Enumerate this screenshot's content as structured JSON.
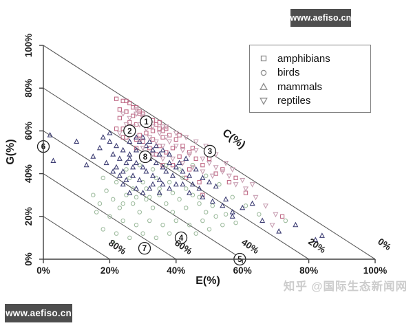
{
  "watermarks": {
    "top_right": "www.aefiso.cn",
    "bottom_left": "www.aefiso.cn",
    "bottom_right": "知乎 @国际生态新闻网"
  },
  "legend": {
    "items": [
      {
        "marker": "square",
        "label": "amphibians"
      },
      {
        "marker": "circle",
        "label": "birds"
      },
      {
        "marker": "triangle-up",
        "label": "mammals"
      },
      {
        "marker": "triangle-down",
        "label": "reptiles"
      }
    ]
  },
  "axes": {
    "x_label": "E(%)",
    "y_label": "G(%)",
    "diag_label": "C(%)",
    "x_ticks": [
      "0%",
      "20%",
      "40%",
      "60%",
      "80%",
      "100%"
    ],
    "y_ticks": [
      "0%",
      "20%",
      "40%",
      "60%",
      "80%",
      "100%"
    ]
  },
  "chart_data": {
    "type": "scatter",
    "title": "",
    "xlabel": "E(%)",
    "ylabel": "G(%)",
    "third_axis_label": "C(%)",
    "xlim": [
      0,
      100
    ],
    "ylim": [
      0,
      100
    ],
    "grid": false,
    "legend_position": "top-right",
    "note": "Ternary-style plot: E + G + C = 100. Diagonal isolines mark constant C values.",
    "c_lines": [
      {
        "intercept": 20,
        "label": "80%"
      },
      {
        "intercept": 40,
        "label": "60%"
      },
      {
        "intercept": 60,
        "label": "40%"
      },
      {
        "intercept": 80,
        "label": "20%"
      },
      {
        "intercept": 100,
        "label": "0%"
      }
    ],
    "annotations": [
      {
        "label": "1",
        "E": 31,
        "G": 64.3
      },
      {
        "label": "2",
        "E": 26,
        "G": 60
      },
      {
        "label": "8",
        "E": 30.7,
        "G": 47.9
      },
      {
        "label": "3",
        "E": 50.2,
        "G": 50.5
      },
      {
        "label": "6",
        "E": 0,
        "G": 52.7
      },
      {
        "label": "7",
        "E": 30.5,
        "G": 5.1
      },
      {
        "label": "4",
        "E": 41.5,
        "G": 10
      },
      {
        "label": "5",
        "E": 59.2,
        "G": 0
      }
    ],
    "series": [
      {
        "name": "amphibians",
        "marker": "square",
        "color": "#bf6a86",
        "points": [
          [
            24,
            74
          ],
          [
            26,
            73
          ],
          [
            28,
            71
          ],
          [
            25,
            69
          ],
          [
            27,
            67
          ],
          [
            29,
            69
          ],
          [
            31,
            66
          ],
          [
            23,
            66
          ],
          [
            26,
            64
          ],
          [
            28,
            63
          ],
          [
            30,
            64
          ],
          [
            32,
            62
          ],
          [
            24,
            61
          ],
          [
            27,
            60
          ],
          [
            29,
            58
          ],
          [
            31,
            59
          ],
          [
            33,
            60
          ],
          [
            35,
            61
          ],
          [
            25,
            57
          ],
          [
            28,
            56
          ],
          [
            30,
            55
          ],
          [
            33,
            56
          ],
          [
            36,
            57
          ],
          [
            38,
            58
          ],
          [
            34,
            63
          ],
          [
            36,
            60
          ],
          [
            27,
            71
          ],
          [
            29,
            68
          ],
          [
            31,
            64
          ],
          [
            33,
            65
          ],
          [
            35,
            64
          ],
          [
            37,
            61
          ],
          [
            40,
            56
          ],
          [
            42,
            53
          ],
          [
            44,
            50
          ],
          [
            46,
            47
          ],
          [
            39,
            52
          ],
          [
            41,
            48
          ],
          [
            35,
            53
          ],
          [
            37,
            50
          ],
          [
            32,
            52
          ],
          [
            34,
            49
          ],
          [
            44,
            42
          ],
          [
            48,
            44
          ],
          [
            52,
            40
          ],
          [
            56,
            36
          ],
          [
            61,
            31
          ],
          [
            47,
            36
          ],
          [
            43,
            38
          ],
          [
            39,
            44
          ],
          [
            72,
            20
          ],
          [
            28,
            52
          ],
          [
            24,
            57
          ],
          [
            22,
            61
          ],
          [
            23,
            70
          ],
          [
            22,
            75
          ],
          [
            25,
            74
          ],
          [
            30,
            68
          ],
          [
            41,
            58
          ],
          [
            45,
            52
          ],
          [
            50,
            47
          ],
          [
            54,
            42
          ],
          [
            36,
            44
          ],
          [
            48,
            30
          ],
          [
            58,
            38
          ]
        ]
      },
      {
        "name": "birds",
        "marker": "circle",
        "color": "#a0bda0",
        "points": [
          [
            15,
            30
          ],
          [
            17,
            26
          ],
          [
            19,
            32
          ],
          [
            21,
            28
          ],
          [
            23,
            24
          ],
          [
            25,
            30
          ],
          [
            27,
            26
          ],
          [
            29,
            22
          ],
          [
            31,
            28
          ],
          [
            33,
            24
          ],
          [
            35,
            30
          ],
          [
            37,
            26
          ],
          [
            39,
            22
          ],
          [
            41,
            28
          ],
          [
            43,
            24
          ],
          [
            45,
            30
          ],
          [
            47,
            26
          ],
          [
            49,
            22
          ],
          [
            20,
            20
          ],
          [
            24,
            18
          ],
          [
            28,
            16
          ],
          [
            32,
            18
          ],
          [
            36,
            16
          ],
          [
            40,
            18
          ],
          [
            44,
            16
          ],
          [
            48,
            18
          ],
          [
            52,
            20
          ],
          [
            22,
            12
          ],
          [
            26,
            10
          ],
          [
            30,
            12
          ],
          [
            34,
            10
          ],
          [
            38,
            12
          ],
          [
            42,
            10
          ],
          [
            46,
            12
          ],
          [
            50,
            14
          ],
          [
            54,
            16
          ],
          [
            18,
            38
          ],
          [
            22,
            36
          ],
          [
            26,
            38
          ],
          [
            30,
            36
          ],
          [
            34,
            38
          ],
          [
            38,
            36
          ],
          [
            42,
            38
          ],
          [
            16,
            22
          ],
          [
            18,
            14
          ],
          [
            21,
            8
          ],
          [
            27,
            33
          ],
          [
            31,
            33
          ],
          [
            35,
            33
          ],
          [
            39,
            31
          ],
          [
            43,
            33
          ],
          [
            47,
            29
          ],
          [
            51,
            25
          ],
          [
            55,
            21
          ],
          [
            58,
            17
          ],
          [
            25,
            42
          ],
          [
            29,
            44
          ],
          [
            33,
            42
          ],
          [
            37,
            44
          ],
          [
            41,
            42
          ],
          [
            45,
            44
          ],
          [
            49,
            39
          ],
          [
            53,
            35
          ],
          [
            57,
            29
          ],
          [
            61,
            25
          ],
          [
            65,
            21
          ],
          [
            73,
            18
          ],
          [
            28,
            29
          ],
          [
            32,
            29
          ],
          [
            24,
            26
          ]
        ]
      },
      {
        "name": "mammals",
        "marker": "triangle-up",
        "color": "#3b3b72",
        "points": [
          [
            2,
            58
          ],
          [
            10,
            55
          ],
          [
            3,
            46
          ],
          [
            18,
            57
          ],
          [
            20,
            55
          ],
          [
            22,
            53
          ],
          [
            24,
            51
          ],
          [
            26,
            49
          ],
          [
            21,
            49
          ],
          [
            23,
            47
          ],
          [
            25,
            45
          ],
          [
            27,
            43
          ],
          [
            19,
            45
          ],
          [
            22,
            43
          ],
          [
            24,
            41
          ],
          [
            26,
            47
          ],
          [
            28,
            45
          ],
          [
            30,
            43
          ],
          [
            28,
            51
          ],
          [
            30,
            49
          ],
          [
            32,
            47
          ],
          [
            34,
            45
          ],
          [
            29,
            55
          ],
          [
            31,
            53
          ],
          [
            33,
            51
          ],
          [
            35,
            49
          ],
          [
            26,
            55
          ],
          [
            28,
            57
          ],
          [
            30,
            57
          ],
          [
            32,
            55
          ],
          [
            34,
            53
          ],
          [
            36,
            51
          ],
          [
            38,
            49
          ],
          [
            27,
            39
          ],
          [
            29,
            37
          ],
          [
            31,
            41
          ],
          [
            33,
            39
          ],
          [
            35,
            37
          ],
          [
            37,
            41
          ],
          [
            39,
            39
          ],
          [
            25,
            37
          ],
          [
            23,
            39
          ],
          [
            21,
            41
          ],
          [
            36,
            43
          ],
          [
            38,
            45
          ],
          [
            40,
            43
          ],
          [
            42,
            41
          ],
          [
            44,
            39
          ],
          [
            41,
            45
          ],
          [
            43,
            47
          ],
          [
            46,
            42
          ],
          [
            48,
            38
          ],
          [
            50,
            36
          ],
          [
            52,
            34
          ],
          [
            45,
            35
          ],
          [
            47,
            33
          ],
          [
            40,
            35
          ],
          [
            38,
            33
          ],
          [
            35,
            31
          ],
          [
            32,
            33
          ],
          [
            30,
            31
          ],
          [
            28,
            33
          ],
          [
            26,
            31
          ],
          [
            24,
            35
          ],
          [
            44,
            31
          ],
          [
            48,
            29
          ],
          [
            51,
            27
          ],
          [
            54,
            25
          ],
          [
            57,
            22
          ],
          [
            60,
            24
          ],
          [
            63,
            26
          ],
          [
            57,
            20
          ],
          [
            55,
            28
          ],
          [
            71,
            13
          ],
          [
            76,
            16
          ],
          [
            82,
            9
          ],
          [
            84,
            11
          ],
          [
            66,
            18
          ],
          [
            20,
            59
          ],
          [
            17,
            52
          ],
          [
            15,
            48
          ],
          [
            13,
            44
          ],
          [
            33,
            35
          ],
          [
            36,
            35
          ],
          [
            42,
            35
          ]
        ]
      },
      {
        "name": "reptiles",
        "marker": "triangle-down",
        "color": "#c89fb2",
        "points": [
          [
            24,
            68
          ],
          [
            26,
            66
          ],
          [
            28,
            68
          ],
          [
            30,
            66
          ],
          [
            32,
            64
          ],
          [
            25,
            63
          ],
          [
            27,
            62
          ],
          [
            29,
            63
          ],
          [
            31,
            61
          ],
          [
            33,
            62
          ],
          [
            35,
            59
          ],
          [
            37,
            57
          ],
          [
            23,
            59
          ],
          [
            26,
            58
          ],
          [
            29,
            56
          ],
          [
            32,
            57
          ],
          [
            34,
            55
          ],
          [
            36,
            53
          ],
          [
            38,
            55
          ],
          [
            40,
            53
          ],
          [
            42,
            51
          ],
          [
            44,
            49
          ],
          [
            46,
            51
          ],
          [
            48,
            47
          ],
          [
            50,
            45
          ],
          [
            52,
            43
          ],
          [
            54,
            41
          ],
          [
            56,
            39
          ],
          [
            30,
            52
          ],
          [
            33,
            49
          ],
          [
            36,
            47
          ],
          [
            39,
            47
          ],
          [
            42,
            45
          ],
          [
            45,
            43
          ],
          [
            48,
            41
          ],
          [
            51,
            39
          ],
          [
            58,
            35
          ],
          [
            61,
            33
          ],
          [
            64,
            29
          ],
          [
            67,
            25
          ],
          [
            70,
            21
          ],
          [
            69,
            16
          ],
          [
            40,
            59
          ],
          [
            43,
            57
          ],
          [
            46,
            55
          ],
          [
            49,
            53
          ],
          [
            52,
            49
          ],
          [
            55,
            45
          ],
          [
            37,
            62
          ],
          [
            36,
            62
          ],
          [
            30,
            67
          ],
          [
            28,
            70
          ],
          [
            60,
            37
          ],
          [
            63,
            35
          ],
          [
            57,
            42
          ]
        ]
      }
    ]
  }
}
